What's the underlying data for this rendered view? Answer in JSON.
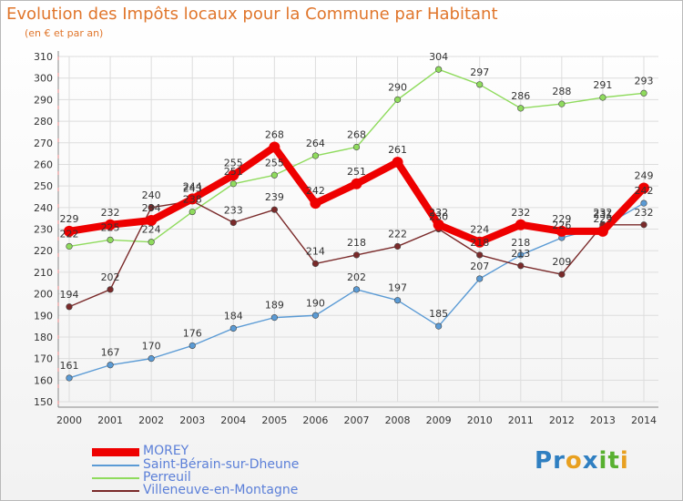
{
  "title": "Evolution des Impôts locaux pour la Commune par Habitant",
  "subtitle": "(en € et par an)",
  "logo": [
    "P",
    "r",
    "o",
    "x",
    "i",
    "t",
    "i"
  ],
  "colors": {
    "title": "#e0762c",
    "logo": [
      "#2f7fc1",
      "#2f7fc1",
      "#e8a020",
      "#2f7fc1",
      "#58b030",
      "#58b030",
      "#e8a020"
    ]
  },
  "chart_data": {
    "type": "line",
    "title": "Evolution des Impôts locaux pour la Commune par Habitant",
    "subtitle": "(en € et par an)",
    "x": [
      "2000",
      "2001",
      "2002",
      "2003",
      "2004",
      "2005",
      "2006",
      "2007",
      "2008",
      "2009",
      "2010",
      "2011",
      "2012",
      "2013",
      "2014"
    ],
    "ylim": [
      150,
      310
    ],
    "yticks": [
      150,
      160,
      170,
      180,
      190,
      200,
      210,
      220,
      230,
      240,
      250,
      260,
      270,
      280,
      290,
      300,
      310
    ],
    "grid": true,
    "legend_position": "bottom-left",
    "series": [
      {
        "name": "MOREY",
        "color": "#ee0000",
        "values": [
          229,
          232,
          234,
          244,
          255,
          268,
          242,
          251,
          261,
          232,
          224,
          232,
          229,
          229,
          249
        ]
      },
      {
        "name": "Saint-Bérain-sur-Dheune",
        "color": "#5b9bd5",
        "values": [
          161,
          167,
          170,
          176,
          184,
          189,
          190,
          202,
          197,
          185,
          207,
          218,
          226,
          231,
          242
        ]
      },
      {
        "name": "Perreuil",
        "color": "#8fdb5d",
        "values": [
          222,
          225,
          224,
          238,
          251,
          255,
          264,
          268,
          290,
          304,
          297,
          286,
          288,
          291,
          293
        ]
      },
      {
        "name": "Villeneuve-en-Montagne",
        "color": "#7a2a2a",
        "values": [
          194,
          202,
          240,
          243,
          233,
          239,
          214,
          218,
          222,
          230,
          218,
          213,
          209,
          232,
          232
        ]
      }
    ]
  }
}
